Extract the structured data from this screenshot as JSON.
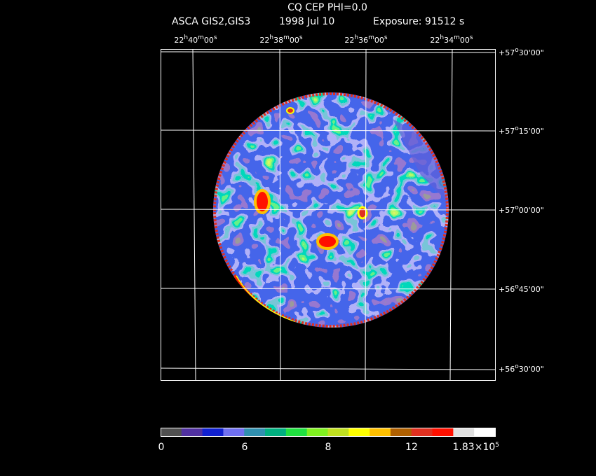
{
  "header": {
    "title": "CQ CEP PHI=0.0",
    "instrument": "ASCA GIS2,GIS3",
    "date": "1998 Jul 10",
    "exposure": "Exposure: 91512 s"
  },
  "ra_labels": [
    [
      "22",
      "h",
      "40",
      "m",
      "00",
      "s"
    ],
    [
      "22",
      "h",
      "38",
      "m",
      "00",
      "s"
    ],
    [
      "22",
      "h",
      "36",
      "m",
      "00",
      "s"
    ],
    [
      "22",
      "h",
      "34",
      "m",
      "00",
      "s"
    ]
  ],
  "dec_labels": [
    [
      "+57",
      "o",
      "30'00\""
    ],
    [
      "+57",
      "o",
      "15'00\""
    ],
    [
      "+57",
      "o",
      "00'00\""
    ],
    [
      "+56",
      "o",
      "45'00\""
    ],
    [
      "+56",
      "o",
      "30'00\""
    ]
  ],
  "colorbar_labels": [
    [
      "0"
    ],
    [
      "6"
    ],
    [
      "8"
    ],
    [
      "12"
    ],
    [
      "1.83×10",
      "5"
    ]
  ]
}
